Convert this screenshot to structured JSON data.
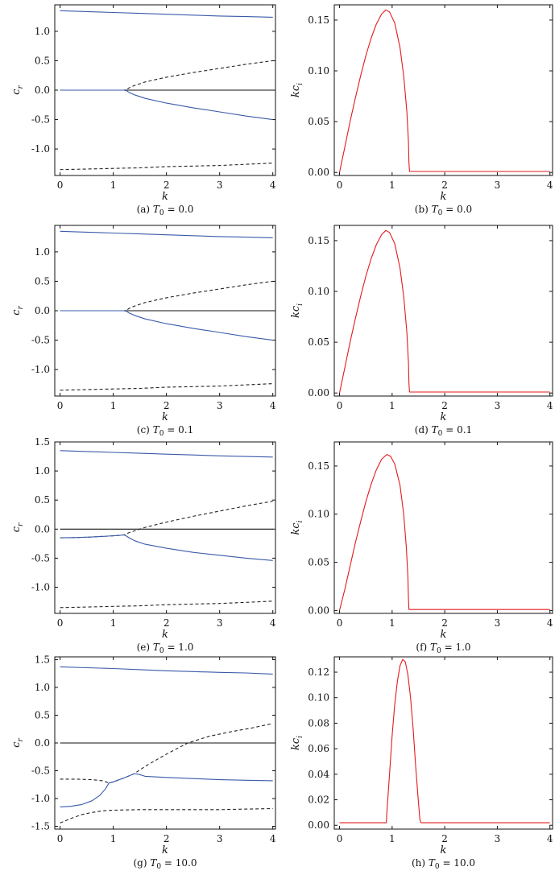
{
  "colors": {
    "blue": "#3a5aa8",
    "red": "#e31a1c",
    "black": "#111111",
    "dashed": "#222222"
  },
  "chart_data": [
    {
      "id": "a",
      "type": "line",
      "caption": "(a) T₀ = 0.0",
      "caption_prefix": "(a) ",
      "caption_var": "T",
      "caption_sub": "0",
      "caption_val": " = 0.0",
      "xlabel": "k",
      "ylabel": "c",
      "ylabel_sub": "r",
      "xlim": [
        -0.1,
        4.05
      ],
      "ylim": [
        -1.45,
        1.45
      ],
      "xticks": [
        0,
        1,
        2,
        3,
        4
      ],
      "yticks": [
        -1.0,
        -0.5,
        0.0,
        0.5,
        1.0
      ],
      "ytick_labels": [
        "-1.0",
        "-0.5",
        "0.0",
        "0.5",
        "1.0"
      ],
      "series": [
        {
          "style": "blue",
          "x": [
            0,
            0.5,
            1,
            1.5,
            2,
            2.5,
            3,
            3.5,
            4
          ],
          "y": [
            1.35,
            1.335,
            1.32,
            1.305,
            1.29,
            1.275,
            1.26,
            1.25,
            1.24
          ]
        },
        {
          "style": "black",
          "x": [
            0,
            4
          ],
          "y": [
            0,
            0
          ]
        },
        {
          "style": "dashed",
          "x": [
            0,
            0.5,
            1.0,
            1.2,
            1.25,
            1.3,
            1.4,
            1.6,
            2,
            2.5,
            3,
            3.5,
            4
          ],
          "y": [
            0,
            0,
            0,
            0,
            0.01,
            0.04,
            0.08,
            0.14,
            0.22,
            0.3,
            0.37,
            0.44,
            0.5
          ]
        },
        {
          "style": "blue",
          "x": [
            0,
            0.5,
            1.0,
            1.2,
            1.25,
            1.3,
            1.4,
            1.6,
            2,
            2.5,
            3,
            3.5,
            4
          ],
          "y": [
            0,
            0,
            0,
            0,
            -0.01,
            -0.04,
            -0.08,
            -0.14,
            -0.22,
            -0.3,
            -0.37,
            -0.44,
            -0.5
          ]
        },
        {
          "style": "dashed",
          "x": [
            0,
            0.5,
            1,
            1.5,
            2,
            2.5,
            3,
            3.5,
            4
          ],
          "y": [
            -1.35,
            -1.34,
            -1.33,
            -1.32,
            -1.3,
            -1.29,
            -1.28,
            -1.26,
            -1.24
          ]
        }
      ]
    },
    {
      "id": "b",
      "type": "line",
      "caption": "(b) T₀ = 0.0",
      "caption_prefix": "(b) ",
      "caption_var": "T",
      "caption_sub": "0",
      "caption_val": " = 0.0",
      "xlabel": "k",
      "ylabel": "kc",
      "ylabel_sub": "i",
      "xlim": [
        -0.1,
        4.05
      ],
      "ylim": [
        -0.003,
        0.165
      ],
      "xticks": [
        0,
        1,
        2,
        3,
        4
      ],
      "yticks": [
        0.0,
        0.05,
        0.1,
        0.15
      ],
      "ytick_labels": [
        "0.00",
        "0.05",
        "0.10",
        "0.15"
      ],
      "series": [
        {
          "style": "red",
          "x": [
            0,
            0.1,
            0.2,
            0.3,
            0.4,
            0.5,
            0.6,
            0.7,
            0.8,
            0.88,
            0.95,
            1.05,
            1.15,
            1.22,
            1.28,
            1.31,
            1.32,
            1.33,
            4.0
          ],
          "y": [
            0,
            0.025,
            0.05,
            0.073,
            0.095,
            0.115,
            0.132,
            0.146,
            0.156,
            0.16,
            0.158,
            0.147,
            0.123,
            0.095,
            0.06,
            0.03,
            0.01,
            0.001,
            0.001
          ]
        }
      ]
    },
    {
      "id": "c",
      "type": "line",
      "caption": "(c) T₀ = 0.1",
      "caption_prefix": "(c) ",
      "caption_var": "T",
      "caption_sub": "0",
      "caption_val": " = 0.1",
      "xlabel": "k",
      "ylabel": "c",
      "ylabel_sub": "r",
      "xlim": [
        -0.1,
        4.05
      ],
      "ylim": [
        -1.45,
        1.45
      ],
      "xticks": [
        0,
        1,
        2,
        3,
        4
      ],
      "yticks": [
        -1.0,
        -0.5,
        0.0,
        0.5,
        1.0
      ],
      "ytick_labels": [
        "-1.0",
        "-0.5",
        "0.0",
        "0.5",
        "1.0"
      ],
      "series": [
        {
          "style": "blue",
          "x": [
            0,
            0.5,
            1,
            1.5,
            2,
            2.5,
            3,
            3.5,
            4
          ],
          "y": [
            1.35,
            1.335,
            1.32,
            1.305,
            1.29,
            1.275,
            1.26,
            1.25,
            1.24
          ]
        },
        {
          "style": "black",
          "x": [
            0,
            4
          ],
          "y": [
            0,
            0
          ]
        },
        {
          "style": "dashed",
          "x": [
            0,
            0.5,
            1.0,
            1.2,
            1.25,
            1.3,
            1.4,
            1.6,
            2,
            2.5,
            3,
            3.5,
            4
          ],
          "y": [
            0,
            0,
            0,
            0,
            0.01,
            0.04,
            0.08,
            0.14,
            0.22,
            0.3,
            0.37,
            0.44,
            0.5
          ]
        },
        {
          "style": "blue",
          "x": [
            0,
            0.5,
            1.0,
            1.2,
            1.25,
            1.3,
            1.4,
            1.6,
            2,
            2.5,
            3,
            3.5,
            4
          ],
          "y": [
            0,
            0,
            0,
            0,
            -0.01,
            -0.04,
            -0.08,
            -0.14,
            -0.22,
            -0.3,
            -0.37,
            -0.44,
            -0.5
          ]
        },
        {
          "style": "dashed",
          "x": [
            0,
            0.5,
            1,
            1.5,
            2,
            2.5,
            3,
            3.5,
            4
          ],
          "y": [
            -1.35,
            -1.34,
            -1.33,
            -1.32,
            -1.3,
            -1.29,
            -1.28,
            -1.26,
            -1.24
          ]
        }
      ]
    },
    {
      "id": "d",
      "type": "line",
      "caption": "(d) T₀ = 0.1",
      "caption_prefix": "(d) ",
      "caption_var": "T",
      "caption_sub": "0",
      "caption_val": " = 0.1",
      "xlabel": "k",
      "ylabel": "kc",
      "ylabel_sub": "i",
      "xlim": [
        -0.1,
        4.05
      ],
      "ylim": [
        -0.003,
        0.165
      ],
      "xticks": [
        0,
        1,
        2,
        3,
        4
      ],
      "yticks": [
        0.0,
        0.05,
        0.1,
        0.15
      ],
      "ytick_labels": [
        "0.00",
        "0.05",
        "0.10",
        "0.15"
      ],
      "series": [
        {
          "style": "red",
          "x": [
            0,
            0.1,
            0.2,
            0.3,
            0.4,
            0.5,
            0.6,
            0.7,
            0.8,
            0.88,
            0.95,
            1.05,
            1.15,
            1.22,
            1.28,
            1.31,
            1.32,
            1.33,
            4.0
          ],
          "y": [
            0,
            0.025,
            0.05,
            0.073,
            0.095,
            0.115,
            0.132,
            0.146,
            0.156,
            0.16,
            0.158,
            0.147,
            0.123,
            0.095,
            0.06,
            0.03,
            0.01,
            0.001,
            0.001
          ]
        }
      ]
    },
    {
      "id": "e",
      "type": "line",
      "caption": "(e) T₀ = 1.0",
      "caption_prefix": "(e) ",
      "caption_var": "T",
      "caption_sub": "0",
      "caption_val": " = 1.0",
      "xlabel": "k",
      "ylabel": "c",
      "ylabel_sub": "r",
      "xlim": [
        -0.1,
        4.05
      ],
      "ylim": [
        -1.45,
        1.5
      ],
      "xticks": [
        0,
        1,
        2,
        3,
        4
      ],
      "yticks": [
        -1.0,
        -0.5,
        0.0,
        0.5,
        1.0,
        1.5
      ],
      "ytick_labels": [
        "-1.0",
        "-0.5",
        "0.0",
        "0.5",
        "1.0",
        "1.5"
      ],
      "series": [
        {
          "style": "blue",
          "x": [
            0,
            0.5,
            1,
            1.5,
            2,
            2.5,
            3,
            3.5,
            4
          ],
          "y": [
            1.35,
            1.335,
            1.32,
            1.305,
            1.29,
            1.275,
            1.26,
            1.25,
            1.24
          ]
        },
        {
          "style": "black",
          "x": [
            0,
            4
          ],
          "y": [
            0,
            0
          ]
        },
        {
          "style": "dashed",
          "x": [
            0,
            0.3,
            0.6,
            0.9,
            1.1,
            1.2,
            1.25,
            1.3,
            1.4,
            1.6,
            2,
            2.5,
            3,
            3.5,
            4
          ],
          "y": [
            -0.15,
            -0.145,
            -0.135,
            -0.12,
            -0.11,
            -0.1,
            -0.08,
            -0.06,
            -0.03,
            0.03,
            0.12,
            0.22,
            0.31,
            0.4,
            0.48
          ]
        },
        {
          "style": "blue",
          "x": [
            0,
            0.3,
            0.6,
            0.9,
            1.1,
            1.2,
            1.25,
            1.3,
            1.4,
            1.6,
            2,
            2.5,
            3,
            3.5,
            4
          ],
          "y": [
            -0.15,
            -0.145,
            -0.135,
            -0.12,
            -0.11,
            -0.1,
            -0.12,
            -0.15,
            -0.2,
            -0.26,
            -0.33,
            -0.4,
            -0.45,
            -0.5,
            -0.54
          ]
        },
        {
          "style": "dashed",
          "x": [
            0,
            0.5,
            1,
            1.5,
            2,
            2.5,
            3,
            3.5,
            4
          ],
          "y": [
            -1.35,
            -1.34,
            -1.33,
            -1.32,
            -1.3,
            -1.29,
            -1.28,
            -1.26,
            -1.24
          ]
        }
      ]
    },
    {
      "id": "f",
      "type": "line",
      "caption": "(f) T₀ = 1.0",
      "caption_prefix": "(f) ",
      "caption_var": "T",
      "caption_sub": "0",
      "caption_val": " = 1.0",
      "xlabel": "k",
      "ylabel": "kc",
      "ylabel_sub": "i",
      "xlim": [
        -0.1,
        4.05
      ],
      "ylim": [
        -0.003,
        0.175
      ],
      "xticks": [
        0,
        1,
        2,
        3,
        4
      ],
      "yticks": [
        0.0,
        0.05,
        0.1,
        0.15
      ],
      "ytick_labels": [
        "0.00",
        "0.05",
        "0.10",
        "0.15"
      ],
      "series": [
        {
          "style": "red",
          "x": [
            0,
            0.1,
            0.2,
            0.3,
            0.4,
            0.5,
            0.6,
            0.7,
            0.8,
            0.9,
            0.97,
            1.05,
            1.15,
            1.22,
            1.27,
            1.3,
            1.31,
            1.32,
            4.0
          ],
          "y": [
            0,
            0.022,
            0.046,
            0.07,
            0.092,
            0.113,
            0.131,
            0.146,
            0.157,
            0.162,
            0.16,
            0.152,
            0.13,
            0.1,
            0.065,
            0.035,
            0.012,
            0.001,
            0.001
          ]
        }
      ]
    },
    {
      "id": "g",
      "type": "line",
      "caption": "(g) T₀ = 10.0",
      "caption_prefix": "(g) ",
      "caption_var": "T",
      "caption_sub": "0",
      "caption_val": " = 10.0",
      "xlabel": "k",
      "ylabel": "c",
      "ylabel_sub": "r",
      "xlim": [
        -0.1,
        4.05
      ],
      "ylim": [
        -1.55,
        1.55
      ],
      "xticks": [
        0,
        1,
        2,
        3,
        4
      ],
      "yticks": [
        -1.5,
        -1.0,
        -0.5,
        0.0,
        0.5,
        1.0,
        1.5
      ],
      "ytick_labels": [
        "-1.5",
        "-1.0",
        "-0.5",
        "0.0",
        "0.5",
        "1.0",
        "1.5"
      ],
      "series": [
        {
          "style": "blue",
          "x": [
            0,
            0.5,
            1,
            1.5,
            2,
            2.5,
            3,
            3.5,
            4
          ],
          "y": [
            1.37,
            1.355,
            1.34,
            1.32,
            1.3,
            1.285,
            1.27,
            1.26,
            1.24
          ]
        },
        {
          "style": "black",
          "x": [
            0,
            4
          ],
          "y": [
            0,
            0
          ]
        },
        {
          "style": "dashed",
          "x": [
            0,
            0.3,
            0.6,
            0.8,
            0.92,
            1.0,
            1.2,
            1.4,
            1.6,
            2.0,
            2.4,
            2.8,
            3.2,
            3.6,
            4.0
          ],
          "y": [
            -0.65,
            -0.65,
            -0.66,
            -0.68,
            -0.72,
            -0.7,
            -0.63,
            -0.55,
            -0.42,
            -0.2,
            0,
            0.12,
            0.2,
            0.27,
            0.35
          ]
        },
        {
          "style": "blue",
          "x": [
            0,
            0.2,
            0.4,
            0.6,
            0.75,
            0.85,
            0.92,
            1.0,
            1.2,
            1.4,
            1.5,
            1.6,
            2.0,
            2.5,
            3.0,
            3.5,
            4.0
          ],
          "y": [
            -1.15,
            -1.14,
            -1.11,
            -1.04,
            -0.94,
            -0.83,
            -0.72,
            -0.7,
            -0.63,
            -0.55,
            -0.57,
            -0.6,
            -0.62,
            -0.64,
            -0.66,
            -0.67,
            -0.68
          ]
        },
        {
          "style": "dashed",
          "x": [
            0,
            0.2,
            0.4,
            0.6,
            0.8,
            1.0,
            1.5,
            2,
            2.5,
            3,
            3.5,
            4
          ],
          "y": [
            -1.44,
            -1.36,
            -1.29,
            -1.25,
            -1.22,
            -1.21,
            -1.2,
            -1.2,
            -1.2,
            -1.2,
            -1.19,
            -1.18
          ]
        }
      ]
    },
    {
      "id": "h",
      "type": "line",
      "caption": "(h) T₀ = 10.0",
      "caption_prefix": "(h) ",
      "caption_var": "T",
      "caption_sub": "0",
      "caption_val": " = 10.0",
      "xlabel": "k",
      "ylabel": "kc",
      "ylabel_sub": "i",
      "xlim": [
        -0.1,
        4.05
      ],
      "ylim": [
        -0.003,
        0.132
      ],
      "xticks": [
        0,
        1,
        2,
        3,
        4
      ],
      "yticks": [
        0.0,
        0.02,
        0.04,
        0.06,
        0.08,
        0.1,
        0.12
      ],
      "ytick_labels": [
        "0.00",
        "0.02",
        "0.04",
        "0.06",
        "0.08",
        "0.10",
        "0.12"
      ],
      "series": [
        {
          "style": "red",
          "x": [
            0,
            0.5,
            0.89,
            0.9,
            0.95,
            1.0,
            1.05,
            1.1,
            1.15,
            1.2,
            1.25,
            1.3,
            1.35,
            1.4,
            1.45,
            1.5,
            1.53,
            1.55,
            4.0
          ],
          "y": [
            0.002,
            0.002,
            0.002,
            0.01,
            0.04,
            0.07,
            0.095,
            0.113,
            0.125,
            0.13,
            0.128,
            0.118,
            0.1,
            0.075,
            0.045,
            0.018,
            0.004,
            0.002,
            0.002
          ]
        }
      ]
    }
  ]
}
